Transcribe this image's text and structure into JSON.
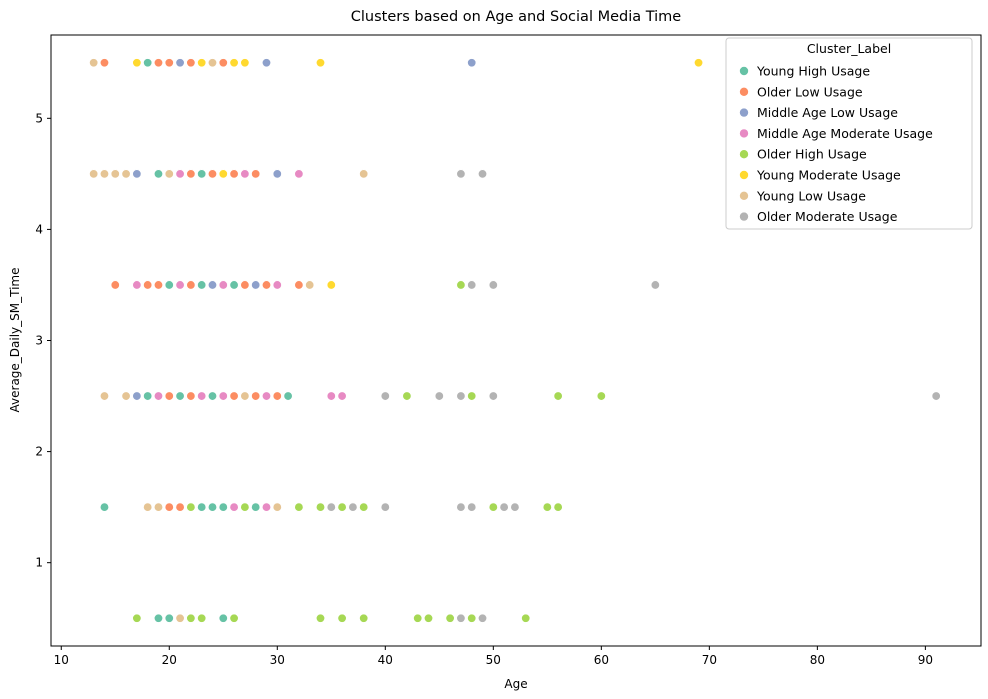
{
  "chart_data": {
    "type": "scatter",
    "title": "Clusters based on Age and Social Media Time",
    "xlabel": "Age",
    "ylabel": "Average_Daily_SM_Time",
    "xlim": [
      9.05,
      95.15
    ],
    "ylim": [
      0.25,
      5.75
    ],
    "xticks": [
      10,
      20,
      30,
      40,
      50,
      60,
      70,
      80,
      90
    ],
    "yticks": [
      1,
      2,
      3,
      4,
      5
    ],
    "grid": false,
    "legend": {
      "title": "Cluster_Label",
      "placement": "top-right"
    },
    "series": [
      {
        "name": "Young High Usage",
        "color": "#66c2a5",
        "points": [
          [
            18,
            5.5
          ],
          [
            19,
            4.5
          ],
          [
            23,
            4.5
          ],
          [
            20,
            3.5
          ],
          [
            23,
            3.5
          ],
          [
            26,
            3.5
          ],
          [
            18,
            2.5
          ],
          [
            21,
            2.5
          ],
          [
            24,
            2.5
          ],
          [
            31,
            2.5
          ],
          [
            14,
            1.5
          ],
          [
            23,
            1.5
          ],
          [
            24,
            1.5
          ],
          [
            25,
            1.5
          ],
          [
            28,
            1.5
          ],
          [
            19,
            0.5
          ],
          [
            20,
            0.5
          ],
          [
            25,
            0.5
          ]
        ]
      },
      {
        "name": "Older Low Usage",
        "color": "#fc8d62",
        "points": [
          [
            14,
            5.5
          ],
          [
            19,
            5.5
          ],
          [
            20,
            5.5
          ],
          [
            22,
            5.5
          ],
          [
            25,
            5.5
          ],
          [
            22,
            4.5
          ],
          [
            24,
            4.5
          ],
          [
            26,
            4.5
          ],
          [
            28,
            4.5
          ],
          [
            15,
            3.5
          ],
          [
            18,
            3.5
          ],
          [
            19,
            3.5
          ],
          [
            22,
            3.5
          ],
          [
            27,
            3.5
          ],
          [
            29,
            3.5
          ],
          [
            32,
            3.5
          ],
          [
            20,
            2.5
          ],
          [
            22,
            2.5
          ],
          [
            26,
            2.5
          ],
          [
            28,
            2.5
          ],
          [
            30,
            2.5
          ],
          [
            20,
            1.5
          ],
          [
            21,
            1.5
          ]
        ]
      },
      {
        "name": "Middle Age Low Usage",
        "color": "#8da0cb",
        "points": [
          [
            21,
            5.5
          ],
          [
            29,
            5.5
          ],
          [
            48,
            5.5
          ],
          [
            17,
            4.5
          ],
          [
            30,
            4.5
          ],
          [
            24,
            3.5
          ],
          [
            28,
            3.5
          ],
          [
            17,
            2.5
          ]
        ]
      },
      {
        "name": "Middle Age Moderate Usage",
        "color": "#e78ac3",
        "points": [
          [
            21,
            4.5
          ],
          [
            27,
            4.5
          ],
          [
            32,
            4.5
          ],
          [
            17,
            3.5
          ],
          [
            21,
            3.5
          ],
          [
            25,
            3.5
          ],
          [
            30,
            3.5
          ],
          [
            19,
            2.5
          ],
          [
            23,
            2.5
          ],
          [
            25,
            2.5
          ],
          [
            29,
            2.5
          ],
          [
            35,
            2.5
          ],
          [
            36,
            2.5
          ],
          [
            26,
            1.5
          ],
          [
            29,
            1.5
          ]
        ]
      },
      {
        "name": "Older High Usage",
        "color": "#a6d854",
        "points": [
          [
            47,
            3.5
          ],
          [
            42,
            2.5
          ],
          [
            48,
            2.5
          ],
          [
            56,
            2.5
          ],
          [
            60,
            2.5
          ],
          [
            22,
            1.5
          ],
          [
            27,
            1.5
          ],
          [
            32,
            1.5
          ],
          [
            34,
            1.5
          ],
          [
            36,
            1.5
          ],
          [
            38,
            1.5
          ],
          [
            50,
            1.5
          ],
          [
            55,
            1.5
          ],
          [
            56,
            1.5
          ],
          [
            17,
            0.5
          ],
          [
            22,
            0.5
          ],
          [
            23,
            0.5
          ],
          [
            26,
            0.5
          ],
          [
            34,
            0.5
          ],
          [
            36,
            0.5
          ],
          [
            38,
            0.5
          ],
          [
            43,
            0.5
          ],
          [
            44,
            0.5
          ],
          [
            46,
            0.5
          ],
          [
            48,
            0.5
          ],
          [
            53,
            0.5
          ]
        ]
      },
      {
        "name": "Young Moderate Usage",
        "color": "#ffd92f",
        "points": [
          [
            17,
            5.5
          ],
          [
            23,
            5.5
          ],
          [
            26,
            5.5
          ],
          [
            27,
            5.5
          ],
          [
            34,
            5.5
          ],
          [
            69,
            5.5
          ],
          [
            25,
            4.5
          ],
          [
            35,
            3.5
          ]
        ]
      },
      {
        "name": "Young Low Usage",
        "color": "#e5c494",
        "points": [
          [
            13,
            5.5
          ],
          [
            24,
            5.5
          ],
          [
            13,
            4.5
          ],
          [
            14,
            4.5
          ],
          [
            15,
            4.5
          ],
          [
            16,
            4.5
          ],
          [
            20,
            4.5
          ],
          [
            38,
            4.5
          ],
          [
            33,
            3.5
          ],
          [
            14,
            2.5
          ],
          [
            16,
            2.5
          ],
          [
            27,
            2.5
          ],
          [
            18,
            1.5
          ],
          [
            19,
            1.5
          ],
          [
            30,
            1.5
          ],
          [
            21,
            0.5
          ]
        ]
      },
      {
        "name": "Older Moderate Usage",
        "color": "#b3b3b3",
        "points": [
          [
            47,
            4.5
          ],
          [
            49,
            4.5
          ],
          [
            48,
            3.5
          ],
          [
            50,
            3.5
          ],
          [
            65,
            3.5
          ],
          [
            40,
            2.5
          ],
          [
            45,
            2.5
          ],
          [
            47,
            2.5
          ],
          [
            50,
            2.5
          ],
          [
            91,
            2.5
          ],
          [
            35,
            1.5
          ],
          [
            37,
            1.5
          ],
          [
            40,
            1.5
          ],
          [
            47,
            1.5
          ],
          [
            48,
            1.5
          ],
          [
            51,
            1.5
          ],
          [
            52,
            1.5
          ],
          [
            47,
            0.5
          ],
          [
            49,
            0.5
          ]
        ]
      }
    ]
  }
}
